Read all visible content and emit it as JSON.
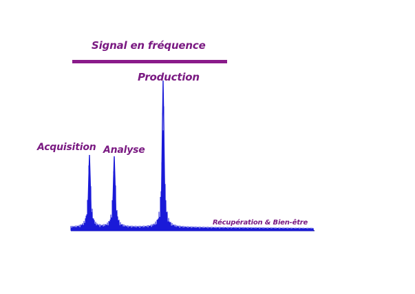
{
  "colors": {
    "label": "#7a1a82",
    "bar": "#8a1a8a",
    "signal": "#1a1ad8",
    "axis": "#2a2a8a"
  },
  "title": "Signal en fréquence",
  "labels": {
    "acquisition": "Acquisition",
    "analyse": "Analyse",
    "production": "Production",
    "recuperation": "Récupération & Bien-être"
  }
}
